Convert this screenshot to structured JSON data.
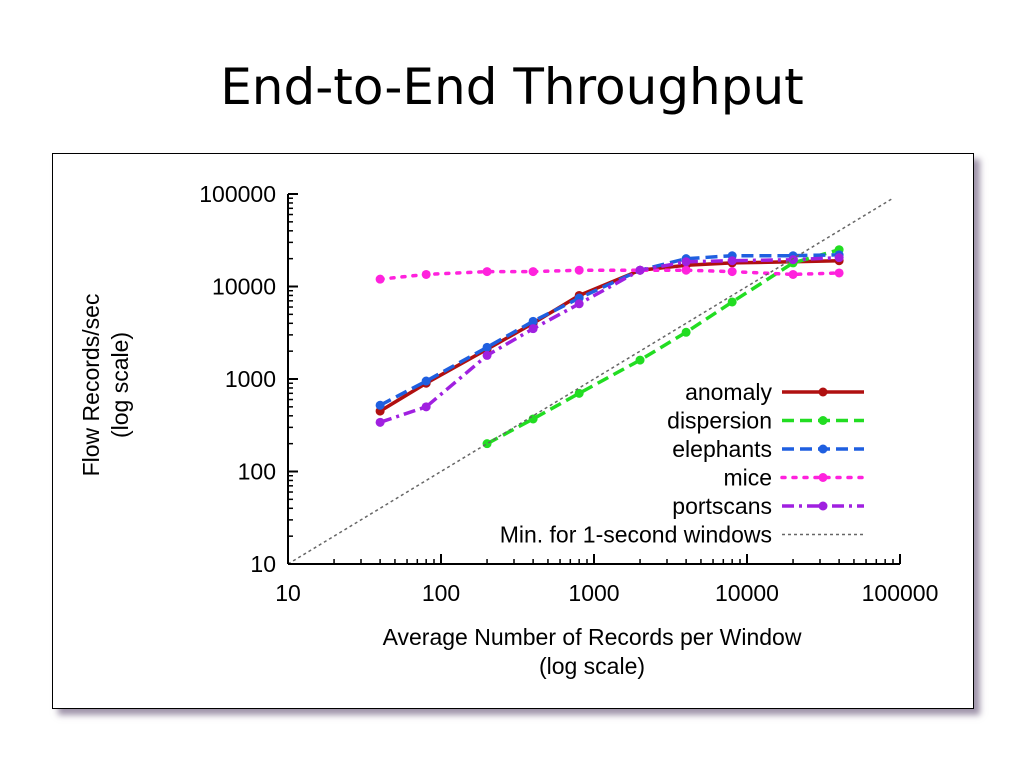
{
  "slide": {
    "title": "End-to-End Throughput"
  },
  "colors": {
    "anomaly": "#b01010",
    "dispersion": "#22dd22",
    "elephants": "#1f5fe0",
    "mice": "#ff22dd",
    "portscans": "#a020e0",
    "reference": "#666666"
  },
  "chart_data": {
    "type": "line",
    "xscale": "log",
    "yscale": "log",
    "xlim": [
      10,
      100000
    ],
    "ylim": [
      10,
      100000
    ],
    "xticks": [
      "10",
      "100",
      "1000",
      "10000",
      "100000"
    ],
    "yticks": [
      "10",
      "100",
      "1000",
      "10000",
      "100000"
    ],
    "xlabel": [
      "Average Number of Records per Window",
      "(log scale)"
    ],
    "ylabel": [
      "Flow Records/sec",
      "(log scale)"
    ],
    "legend_position": "bottom-right",
    "series": [
      {
        "name": "anomaly",
        "style": "solid",
        "color": "#b01010",
        "x": [
          40,
          80,
          200,
          400,
          800,
          2000,
          4000,
          8000,
          20000,
          40000
        ],
        "y": [
          450,
          900,
          2100,
          4000,
          8000,
          15000,
          17000,
          18000,
          18500,
          19000
        ]
      },
      {
        "name": "dispersion",
        "style": "dashed",
        "color": "#22dd22",
        "x": [
          200,
          400,
          800,
          2000,
          4000,
          8000,
          20000,
          40000
        ],
        "y": [
          200,
          370,
          700,
          1600,
          3200,
          6800,
          18000,
          25000
        ]
      },
      {
        "name": "elephants",
        "style": "dashed",
        "color": "#1f5fe0",
        "x": [
          40,
          80,
          200,
          400,
          800,
          2000,
          4000,
          8000,
          20000,
          40000
        ],
        "y": [
          520,
          950,
          2200,
          4200,
          7500,
          15000,
          20000,
          21500,
          21500,
          22000
        ]
      },
      {
        "name": "mice",
        "style": "dotted",
        "color": "#ff22dd",
        "x": [
          40,
          80,
          200,
          400,
          800,
          2000,
          4000,
          8000,
          20000,
          40000
        ],
        "y": [
          12000,
          13500,
          14500,
          14500,
          15000,
          15000,
          15000,
          14500,
          13500,
          14000
        ]
      },
      {
        "name": "portscans",
        "style": "dashdot",
        "color": "#a020e0",
        "x": [
          40,
          80,
          200,
          400,
          800,
          2000,
          4000,
          8000,
          20000,
          40000
        ],
        "y": [
          340,
          500,
          1800,
          3500,
          6500,
          15000,
          18500,
          19000,
          19500,
          20500
        ]
      },
      {
        "name": "Min. for 1-second windows",
        "style": "dotted-thin",
        "color": "#666666",
        "x": [
          10,
          90000
        ],
        "y": [
          10,
          90000
        ]
      }
    ]
  }
}
